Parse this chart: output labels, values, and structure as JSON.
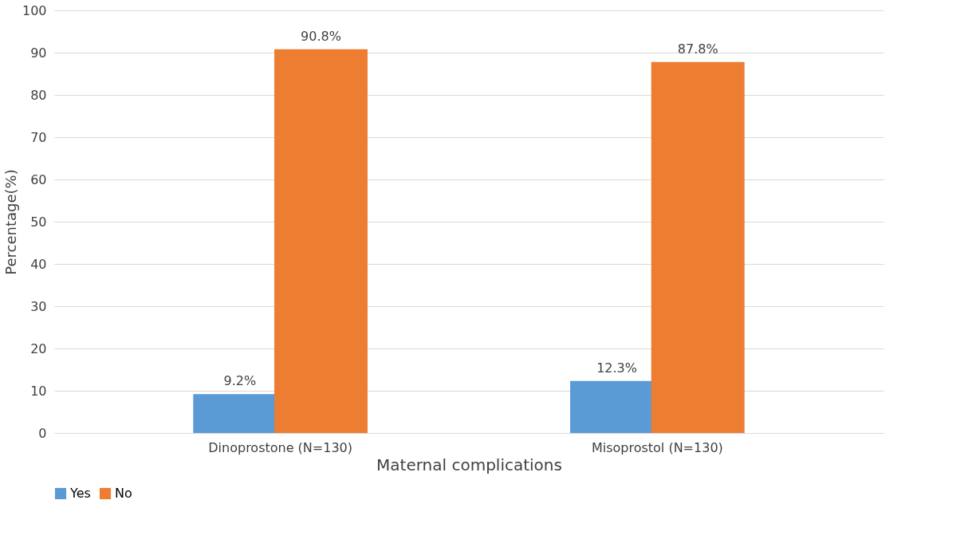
{
  "chart_data": {
    "type": "bar",
    "xlabel": "Maternal complications",
    "ylabel": "Percentage(%)",
    "categories": [
      "Dinoprostone (N=130)",
      "Misoprostol (N=130)"
    ],
    "series": [
      {
        "name": "Yes",
        "color": "#5b9bd5",
        "values": [
          9.2,
          12.3
        ],
        "value_labels": [
          "9.2%",
          "12.3%"
        ]
      },
      {
        "name": "No",
        "color": "#ed7d31",
        "values": [
          90.8,
          87.8
        ],
        "value_labels": [
          "90.8%",
          "87.8%"
        ]
      }
    ],
    "ylim": [
      0,
      100
    ],
    "yticks": [
      0,
      10,
      20,
      30,
      40,
      50,
      60,
      70,
      80,
      90,
      100
    ],
    "grid": "y",
    "legend": "bottom"
  }
}
